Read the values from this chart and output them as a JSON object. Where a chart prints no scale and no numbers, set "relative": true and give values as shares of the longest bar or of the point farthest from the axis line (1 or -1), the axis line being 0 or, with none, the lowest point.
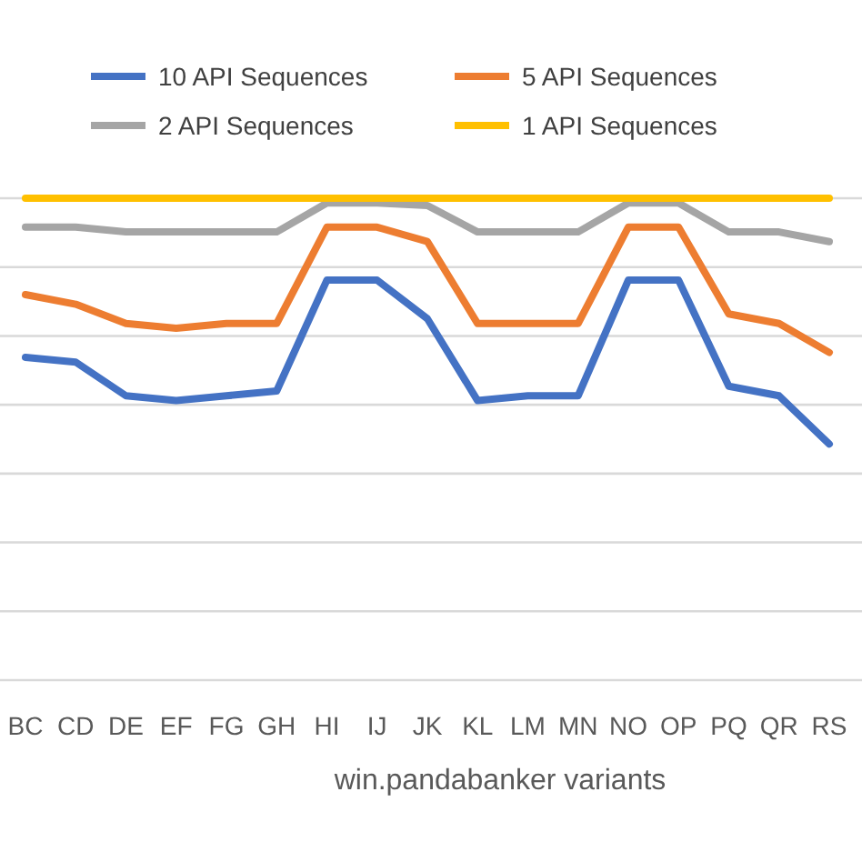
{
  "chart_data": {
    "type": "line",
    "relative": true,
    "xlabel": "win.pandabanker variants",
    "categories": [
      "BC",
      "CD",
      "DE",
      "EF",
      "FG",
      "GH",
      "HI",
      "IJ",
      "JK",
      "KL",
      "LM",
      "MN",
      "NO",
      "OP",
      "PQ",
      "QR",
      "RS"
    ],
    "series": [
      {
        "name": "10 API Sequences",
        "color": "#4472c4",
        "values": [
          0.67,
          0.66,
          0.59,
          0.58,
          0.59,
          0.6,
          0.83,
          0.83,
          0.75,
          0.58,
          0.59,
          0.59,
          0.83,
          0.83,
          0.61,
          0.59,
          0.49
        ]
      },
      {
        "name": "5 API Sequences",
        "color": "#ed7d31",
        "values": [
          0.8,
          0.78,
          0.74,
          0.73,
          0.74,
          0.74,
          0.94,
          0.94,
          0.91,
          0.74,
          0.74,
          0.74,
          0.94,
          0.94,
          0.76,
          0.74,
          0.68
        ]
      },
      {
        "name": "2 API Sequences",
        "color": "#a5a5a5",
        "values": [
          0.94,
          0.94,
          0.93,
          0.93,
          0.93,
          0.93,
          0.99,
          0.99,
          0.985,
          0.93,
          0.93,
          0.93,
          0.99,
          0.99,
          0.93,
          0.93,
          0.91
        ]
      },
      {
        "name": "1 API Sequences",
        "color": "#ffc000",
        "values": [
          1,
          1,
          1,
          1,
          1,
          1,
          1,
          1,
          1,
          1,
          1,
          1,
          1,
          1,
          1,
          1,
          1
        ]
      }
    ],
    "grid": "y",
    "legend": "top",
    "marker": "none",
    "line_style": "solid"
  }
}
